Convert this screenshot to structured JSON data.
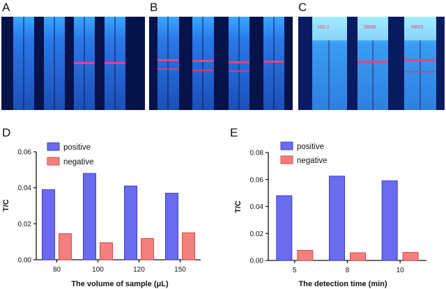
{
  "panels": {
    "A": "A",
    "B": "B",
    "C": "C",
    "D": "D",
    "E": "E"
  },
  "photo_c_labels": [
    "HG-2",
    "SB08",
    "RB65"
  ],
  "colors": {
    "positive_fill": "#6b6bf0",
    "positive_edge": "#3c3ccf",
    "negative_fill": "#f47f7f",
    "negative_edge": "#d94a4a",
    "photo_background": "#06124a",
    "strip_blue": "#1f6fe0",
    "band_red": "#e8437c"
  },
  "chart_data": [
    {
      "type": "bar",
      "panel": "D",
      "categories": [
        "80",
        "100",
        "120",
        "150"
      ],
      "series": [
        {
          "name": "positive",
          "values": [
            0.039,
            0.048,
            0.041,
            0.037
          ]
        },
        {
          "name": "negative",
          "values": [
            0.0145,
            0.0095,
            0.0118,
            0.015
          ]
        }
      ],
      "xlabel": "The volume of sample (μL)",
      "ylabel": "T/C",
      "ylim": [
        0,
        0.06
      ],
      "yticks": [
        "0.00",
        "0.02",
        "0.04",
        "0.06"
      ],
      "grid": false,
      "legend": "top-left"
    },
    {
      "type": "bar",
      "panel": "E",
      "categories": [
        "5",
        "8",
        "10"
      ],
      "series": [
        {
          "name": "positive",
          "values": [
            0.048,
            0.0625,
            0.059
          ]
        },
        {
          "name": "negative",
          "values": [
            0.0075,
            0.0057,
            0.006
          ]
        }
      ],
      "xlabel": "The detection time (min)",
      "ylabel": "T/C",
      "ylim": [
        0,
        0.08
      ],
      "yticks": [
        "0.00",
        "0.02",
        "0.04",
        "0.06",
        "0.08"
      ],
      "grid": false,
      "legend": "top-left"
    }
  ]
}
